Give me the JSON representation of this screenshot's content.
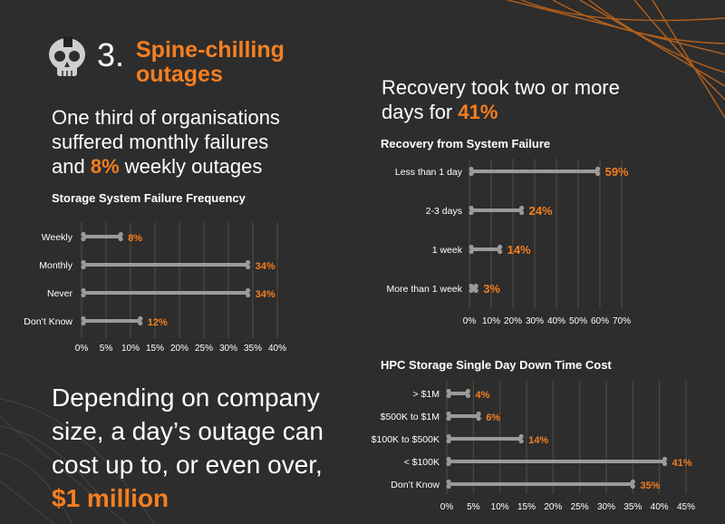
{
  "section": {
    "number": "3.",
    "title_line1": "Spine-chilling",
    "title_line2": "outages"
  },
  "headline_left": {
    "line1": "One third of organisations",
    "line2": "suffered monthly failures",
    "line3_pre": "and ",
    "line3_highlight": "8%",
    "line3_post": " weekly outages"
  },
  "headline_right": {
    "line1": "Recovery took two or more",
    "line2_pre": "days for ",
    "line2_highlight": "41%"
  },
  "headline_cost": {
    "line1": "Depending on company",
    "line2": "size, a day’s outage can",
    "line3": "cost up to, or even over,",
    "line4_highlight": "$1 million"
  },
  "colors": {
    "accent": "#f57f20",
    "bar": "#9a9a9a",
    "background": "#2d2d2d",
    "grid": "#5a4a3a"
  },
  "chart_data": [
    {
      "type": "bar",
      "orientation": "horizontal",
      "title": "Storage System Failure Frequency",
      "categories": [
        "Weekly",
        "Monthly",
        "Never",
        "Don’t Know"
      ],
      "values": [
        8,
        34,
        34,
        12
      ],
      "value_labels": [
        "8%",
        "34%",
        "34%",
        "12%"
      ],
      "xlim": [
        0,
        40
      ],
      "ticks": [
        "0%",
        "5%",
        "10%",
        "15%",
        "20%",
        "25%",
        "30%",
        "35%",
        "40%"
      ]
    },
    {
      "type": "bar",
      "orientation": "horizontal",
      "title": "Recovery from System Failure",
      "categories": [
        "Less than 1 day",
        "2-3 days",
        "1 week",
        "More than 1 week"
      ],
      "values": [
        59,
        24,
        14,
        3
      ],
      "value_labels": [
        "59%",
        "24%",
        "14%",
        "3%"
      ],
      "xlim": [
        0,
        70
      ],
      "ticks": [
        "0%",
        "10%",
        "20%",
        "30%",
        "40%",
        "50%",
        "60%",
        "70%"
      ]
    },
    {
      "type": "bar",
      "orientation": "horizontal",
      "title": "HPC Storage Single Day Down Time Cost",
      "categories": [
        "> $1M",
        "$500K to $1M",
        "$100K to $500K",
        "< $100K",
        "Don’t Know"
      ],
      "values": [
        4,
        6,
        14,
        41,
        35
      ],
      "value_labels": [
        "4%",
        "6%",
        "14%",
        "41%",
        "35%"
      ],
      "xlim": [
        0,
        45
      ],
      "ticks": [
        "0%",
        "5%",
        "10%",
        "15%",
        "20%",
        "25%",
        "30%",
        "35%",
        "40%",
        "45%"
      ]
    }
  ]
}
